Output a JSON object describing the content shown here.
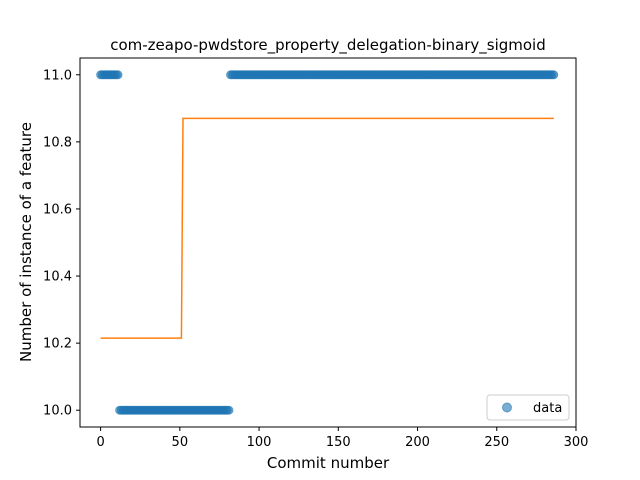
{
  "chart_data": {
    "type": "scatter",
    "title": "com-zeapo-pwdstore_property_delegation-binary_sigmoid",
    "xlabel": "Commit number",
    "ylabel": "Number of instance of a feature",
    "xlim": [
      -13,
      300
    ],
    "ylim": [
      9.95,
      11.05
    ],
    "xticks": [
      0,
      50,
      100,
      150,
      200,
      250,
      300
    ],
    "yticks": [
      10.0,
      10.2,
      10.4,
      10.6,
      10.8,
      11.0
    ],
    "ytick_labels": [
      "10.0",
      "10.2",
      "10.4",
      "10.6",
      "10.8",
      "11.0"
    ],
    "grid": false,
    "legend": {
      "position": "lower-right",
      "entries": [
        "data"
      ]
    },
    "colors": {
      "points": "#1f77b4",
      "fit": "#ff7f0e"
    },
    "series": [
      {
        "name": "data",
        "kind": "scatter",
        "segments": [
          {
            "x_start": 0,
            "x_end": 11,
            "y": 11.0
          },
          {
            "x_start": 12,
            "x_end": 81,
            "y": 10.0
          },
          {
            "x_start": 82,
            "x_end": 286,
            "y": 11.0
          }
        ]
      },
      {
        "kind": "line",
        "points": [
          [
            0,
            10.215
          ],
          [
            51,
            10.215
          ],
          [
            52,
            10.87
          ],
          [
            286,
            10.87
          ]
        ]
      }
    ]
  }
}
